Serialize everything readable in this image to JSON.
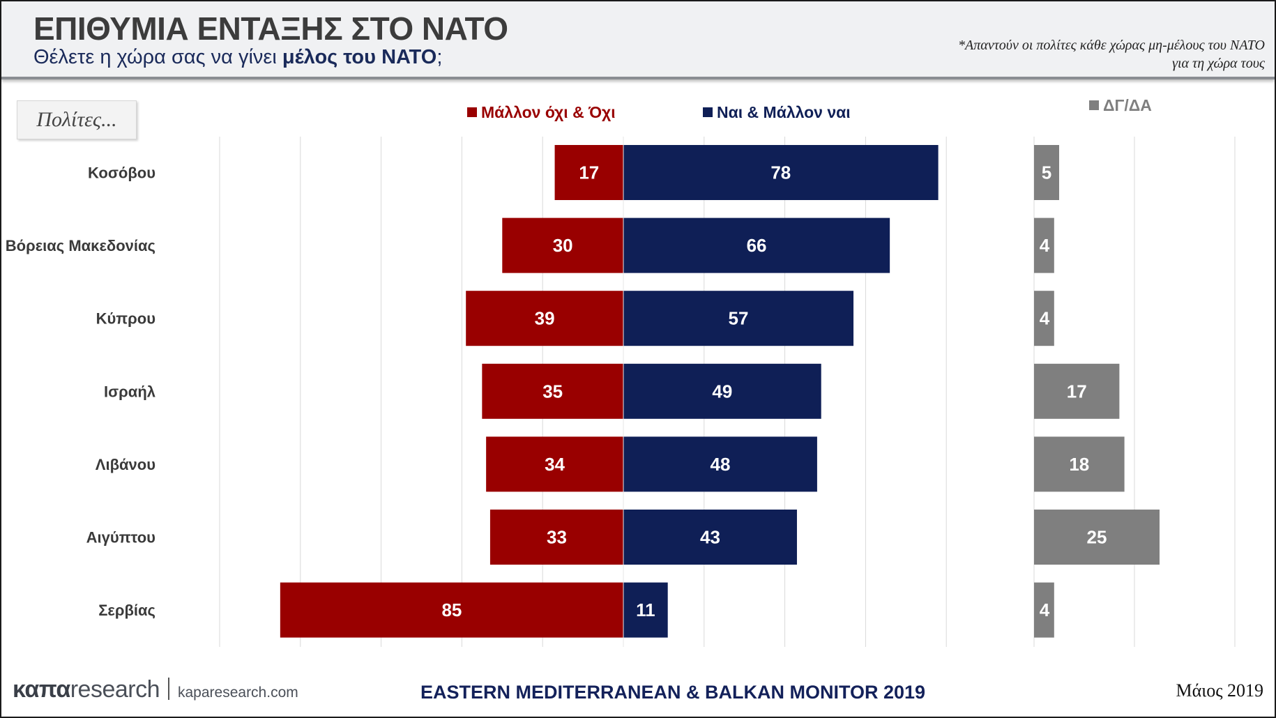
{
  "header": {
    "title": "ΕΠΙΘΥΜΙΑ ΕΝΤΑΞΗΣ ΣΤΟ ΝΑΤΟ",
    "subtitle_prefix": "Θέλετε η χώρα σας να γίνει ",
    "subtitle_bold": "μέλος του ΝΑΤΟ",
    "subtitle_suffix": ";",
    "note_line1": "*Απαντούν οι πολίτες κάθε χώρας μη-μέλους του ΝΑΤΟ",
    "note_line2": "για τη χώρα τους"
  },
  "row_header_label": "Πολίτες...",
  "colors": {
    "no": "#990000",
    "yes": "#0f1f56",
    "dk": "#7f7f7f",
    "grid": "#d9d9d9"
  },
  "chart_data": {
    "type": "bar",
    "orientation": "horizontal-diverging",
    "categories": [
      "Κοσόβου",
      "Βόρειας Μακεδονίας",
      "Κύπρου",
      "Ισραήλ",
      "Λιβάνου",
      "Αιγύπτου",
      "Σερβίας"
    ],
    "series": [
      {
        "name": "Μάλλον όχι & Όχι",
        "values": [
          17,
          30,
          39,
          35,
          34,
          33,
          85
        ]
      },
      {
        "name": "Ναι & Μάλλον ναι",
        "values": [
          78,
          66,
          57,
          49,
          48,
          43,
          11
        ]
      },
      {
        "name": "ΔΓ/ΔΑ",
        "values": [
          5,
          4,
          4,
          17,
          18,
          25,
          4
        ]
      }
    ],
    "legend_position": "top",
    "grid": true
  },
  "footer": {
    "brand_bold": "καπα",
    "brand_rest": "research",
    "site": "kaparesearch.com",
    "monitor": "EASTERN MEDITERRANEAN & BALKAN MONITOR 2019",
    "date": "Μάιος 2019"
  }
}
